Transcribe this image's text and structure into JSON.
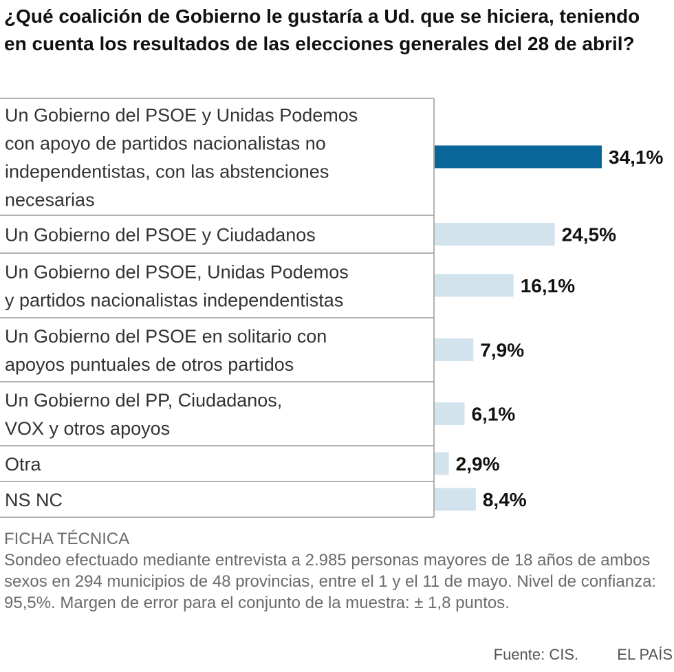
{
  "title": "¿Qué coalición de Gobierno le gustaría a Ud. que se hiciera, teniendo en cuenta los resultados de las elecciones generales del 28 de abril?",
  "chart_data": {
    "type": "bar",
    "orientation": "horizontal",
    "categories": [
      [
        "Un Gobierno del PSOE y Unidas Podemos",
        "con apoyo de partidos nacionalistas no",
        "independentistas, con las abstenciones",
        "necesarias"
      ],
      [
        "Un Gobierno del PSOE y Ciudadanos"
      ],
      [
        "Un Gobierno del PSOE, Unidas Podemos",
        "y partidos nacionalistas independentistas"
      ],
      [
        "Un Gobierno del PSOE en solitario con",
        "apoyos puntuales de otros partidos"
      ],
      [
        "Un Gobierno del PP, Ciudadanos,",
        "VOX y otros apoyos"
      ],
      [
        "Otra"
      ],
      [
        "NS NC"
      ]
    ],
    "values": [
      34.1,
      24.5,
      16.1,
      7.9,
      6.1,
      2.9,
      8.4
    ],
    "value_labels": [
      "34,1%",
      "24,5%",
      "16,1%",
      "7,9%",
      "6,1%",
      "2,9%",
      "8,4%"
    ],
    "highlight_index": 0,
    "colors": {
      "highlight": "#0a6599",
      "bar": "#d2e3ed",
      "divider": "#999999"
    },
    "title": "¿Qué coalición de Gobierno le gustaría a Ud. que se hiciera, teniendo en cuenta los resultados de las elecciones generales del 28 de abril?",
    "xlim": [
      0,
      34.1
    ]
  },
  "ficha": {
    "title": "FICHA TÉCNICA",
    "text": "Sondeo efectuado mediante entrevista a 2.985 personas mayores de 18 años de ambos sexos en 294 municipios de 48 provincias, entre el 1 y el 11 de mayo. Nivel de confianza: 95,5%. Margen de error para el conjunto de la muestra: ± 1,8 puntos."
  },
  "footer": {
    "source": "Fuente: CIS.",
    "brand": "EL PAÍS"
  }
}
